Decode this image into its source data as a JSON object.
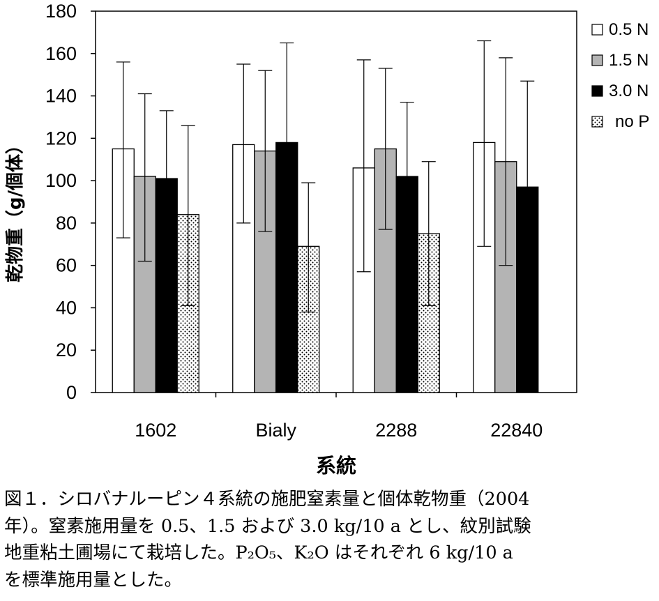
{
  "chart_data": {
    "type": "bar",
    "xlabel": "系統",
    "ylabel": "乾物重（g/個体）",
    "ylim": [
      0,
      180
    ],
    "yticks": [
      0,
      20,
      40,
      60,
      80,
      100,
      120,
      140,
      160,
      180
    ],
    "categories": [
      "1602",
      "Bialy",
      "2288",
      "22840"
    ],
    "legend_position": "right",
    "series": [
      {
        "name": "0.5 N",
        "fill": "white",
        "values": [
          115,
          117,
          106,
          118
        ],
        "err_upper": [
          156,
          155,
          157,
          166
        ],
        "err_lower": [
          73,
          80,
          57,
          69
        ]
      },
      {
        "name": "1.5 N",
        "fill": "gray",
        "values": [
          102,
          114,
          115,
          109
        ],
        "err_upper": [
          141,
          152,
          153,
          158
        ],
        "err_lower": [
          62,
          76,
          77,
          60
        ]
      },
      {
        "name": "3.0 N",
        "fill": "black",
        "values": [
          101,
          118,
          102,
          97
        ],
        "err_upper": [
          133,
          165,
          137,
          147
        ],
        "err_lower": [
          null,
          null,
          null,
          null
        ]
      },
      {
        "name": "no P",
        "fill": "dotted",
        "values": [
          84,
          69,
          75,
          null
        ],
        "err_upper": [
          126,
          99,
          109,
          null
        ],
        "err_lower": [
          41,
          38,
          41,
          null
        ]
      }
    ]
  },
  "colors": {
    "white": "#ffffff",
    "gray": "#b4b4b4",
    "black": "#000000",
    "dotted": "#ffffff"
  },
  "caption": {
    "lines": [
      "図１．シロバナルーピン４系統の施肥窒素量と個体乾物重（2004",
      "年）。窒素施用量を 0.5、1.5 および 3.0 kg/10 a とし、紋別試験",
      "地重粘土圃場にて栽培した。P₂O₅、K₂O はそれぞれ 6 kg/10 a",
      "を標準施用量とした。"
    ]
  }
}
